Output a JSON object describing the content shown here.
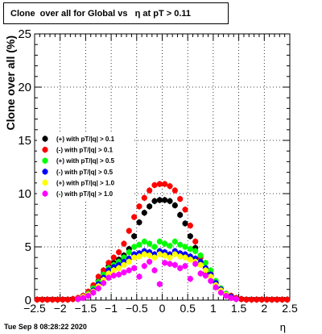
{
  "chart_data": {
    "type": "scatter",
    "title": "Clone  over all for Global vs   η at pT > 0.11",
    "xlabel": "η",
    "ylabel": "Clone  over all (%)",
    "xlim": [
      -2.5,
      2.5
    ],
    "ylim": [
      0,
      25
    ],
    "x_ticks": [
      "−2.5",
      "−2",
      "−1.5",
      "−1",
      "−0.5",
      "0",
      "0.5",
      "1",
      "1.5",
      "2",
      "2.5"
    ],
    "y_ticks": [
      "0",
      "5",
      "10",
      "15",
      "20",
      "25"
    ],
    "grid": true,
    "legend_position": "middle-left",
    "series": [
      {
        "name": "(+) with pT/|q| > 0.1",
        "color": "#000000",
        "x": [
          -2.45,
          -2.35,
          -2.25,
          -2.15,
          -2.05,
          -1.95,
          -1.85,
          -1.75,
          -1.65,
          -1.55,
          -1.45,
          -1.35,
          -1.25,
          -1.15,
          -1.05,
          -0.95,
          -0.85,
          -0.75,
          -0.65,
          -0.55,
          -0.45,
          -0.35,
          -0.25,
          -0.15,
          -0.05,
          0.05,
          0.15,
          0.25,
          0.35,
          0.45,
          0.55,
          0.65,
          0.75,
          0.85,
          0.95,
          1.05,
          1.15,
          1.25,
          1.35,
          1.45,
          1.55,
          1.65,
          1.75,
          1.85,
          1.95,
          2.05,
          2.15,
          2.25,
          2.35,
          2.45
        ],
        "y": [
          0.05,
          0.05,
          0.05,
          0.05,
          0.05,
          0.05,
          0.05,
          0.1,
          0.2,
          0.4,
          0.7,
          1.2,
          1.8,
          2.5,
          3.2,
          3.5,
          3.8,
          4.2,
          4.8,
          6.0,
          7.3,
          8.2,
          8.8,
          9.3,
          9.4,
          9.4,
          9.3,
          8.9,
          8.0,
          7.2,
          6.0,
          4.9,
          3.4,
          2.7,
          2.3,
          1.6,
          1.0,
          0.6,
          0.4,
          0.2,
          0.1,
          0.05,
          0.05,
          0.05,
          0.05,
          0.05,
          0.05,
          0.05,
          0.05,
          0.05
        ]
      },
      {
        "name": "(-) with pT/|q| > 0.1",
        "color": "#ff0000",
        "x": [
          -2.45,
          -2.35,
          -2.25,
          -2.15,
          -2.05,
          -1.95,
          -1.85,
          -1.75,
          -1.65,
          -1.55,
          -1.45,
          -1.35,
          -1.25,
          -1.15,
          -1.05,
          -0.95,
          -0.85,
          -0.75,
          -0.65,
          -0.55,
          -0.45,
          -0.35,
          -0.25,
          -0.15,
          -0.05,
          0.05,
          0.15,
          0.25,
          0.35,
          0.45,
          0.55,
          0.65,
          0.75,
          0.85,
          0.95,
          1.05,
          1.15,
          1.25,
          1.35,
          1.45,
          1.55,
          1.65,
          1.75,
          1.85,
          1.95,
          2.05,
          2.15,
          2.25,
          2.35,
          2.45
        ],
        "y": [
          0.05,
          0.05,
          0.05,
          0.05,
          0.05,
          0.05,
          0.05,
          0.1,
          0.2,
          0.4,
          0.8,
          1.4,
          2.2,
          2.8,
          3.5,
          4.0,
          4.5,
          5.3,
          6.5,
          7.8,
          8.8,
          9.6,
          10.3,
          10.8,
          10.9,
          10.9,
          10.7,
          10.3,
          9.5,
          8.5,
          7.0,
          5.5,
          4.0,
          3.0,
          2.5,
          1.7,
          1.1,
          0.6,
          0.4,
          0.2,
          0.1,
          0.05,
          0.05,
          0.05,
          0.05,
          0.05,
          0.05,
          0.05,
          0.05,
          0.05
        ]
      },
      {
        "name": "(+) with pT/|q| > 0.5",
        "color": "#00ff00",
        "x": [
          -1.65,
          -1.55,
          -1.45,
          -1.35,
          -1.25,
          -1.15,
          -1.05,
          -0.95,
          -0.85,
          -0.75,
          -0.65,
          -0.55,
          -0.45,
          -0.35,
          -0.25,
          -0.15,
          -0.05,
          0.05,
          0.15,
          0.25,
          0.35,
          0.45,
          0.55,
          0.65,
          0.75,
          0.85,
          0.95,
          1.05,
          1.15,
          1.25,
          1.35,
          1.45
        ],
        "y": [
          0.1,
          0.3,
          0.6,
          1.1,
          1.7,
          2.4,
          3.0,
          3.3,
          3.6,
          4.0,
          4.5,
          5.0,
          5.2,
          5.5,
          5.3,
          5.0,
          5.5,
          5.3,
          5.1,
          5.5,
          5.2,
          5.0,
          4.8,
          4.6,
          4.2,
          3.5,
          2.8,
          1.8,
          1.1,
          0.6,
          0.3,
          0.1
        ]
      },
      {
        "name": "(-) with pT/|q| > 0.5",
        "color": "#0000ff",
        "x": [
          -1.65,
          -1.55,
          -1.45,
          -1.35,
          -1.25,
          -1.15,
          -1.05,
          -0.95,
          -0.85,
          -0.75,
          -0.65,
          -0.55,
          -0.45,
          -0.35,
          -0.25,
          -0.15,
          -0.05,
          0.05,
          0.15,
          0.25,
          0.35,
          0.45,
          0.55,
          0.65,
          0.75,
          0.85,
          0.95,
          1.05,
          1.15,
          1.25,
          1.35,
          1.45
        ],
        "y": [
          0.1,
          0.3,
          0.5,
          0.9,
          1.5,
          2.1,
          2.8,
          3.1,
          3.3,
          3.6,
          3.9,
          4.3,
          4.4,
          4.6,
          4.5,
          4.3,
          4.6,
          4.5,
          4.3,
          4.6,
          4.4,
          4.3,
          4.1,
          3.9,
          3.6,
          3.0,
          2.4,
          1.6,
          1.0,
          0.5,
          0.3,
          0.1
        ]
      },
      {
        "name": "(+) with pT/|q| > 1.0",
        "color": "#ffff00",
        "x": [
          -1.65,
          -1.55,
          -1.45,
          -1.35,
          -1.25,
          -1.15,
          -1.05,
          -0.95,
          -0.85,
          -0.75,
          -0.65,
          -0.55,
          -0.45,
          -0.35,
          -0.25,
          -0.15,
          -0.05,
          0.05,
          0.15,
          0.25,
          0.35,
          0.45,
          0.55,
          0.65,
          0.75,
          0.85,
          0.95,
          1.05,
          1.15,
          1.25,
          1.35,
          1.45
        ],
        "y": [
          0.1,
          0.3,
          0.5,
          0.8,
          1.3,
          1.9,
          2.5,
          2.8,
          3.0,
          3.3,
          3.6,
          4.0,
          4.1,
          4.3,
          4.2,
          4.0,
          4.3,
          4.2,
          4.0,
          4.3,
          4.1,
          4.0,
          3.8,
          3.6,
          3.3,
          2.8,
          2.2,
          1.4,
          0.9,
          0.5,
          0.2,
          0.1
        ]
      },
      {
        "name": "(-) with pT/|q| > 1.0",
        "color": "#ff00ff",
        "x": [
          -1.65,
          -1.55,
          -1.45,
          -1.35,
          -1.25,
          -1.15,
          -1.05,
          -0.95,
          -0.85,
          -0.75,
          -0.65,
          -0.55,
          -0.45,
          -0.35,
          -0.25,
          -0.15,
          -0.05,
          0.05,
          0.15,
          0.25,
          0.35,
          0.45,
          0.55,
          0.65,
          0.75,
          0.85,
          0.95,
          1.05,
          1.15,
          1.25,
          1.35,
          1.45
        ],
        "y": [
          0.1,
          0.2,
          0.4,
          0.7,
          1.1,
          1.6,
          2.1,
          2.3,
          2.4,
          2.6,
          2.8,
          3.0,
          2.2,
          3.2,
          3.6,
          2.8,
          1.5,
          3.5,
          3.4,
          3.3,
          3.0,
          3.2,
          2.0,
          3.4,
          2.5,
          2.3,
          1.8,
          1.2,
          0.7,
          0.4,
          0.2,
          0.1
        ]
      }
    ]
  },
  "footer": {
    "timestamp": "Tue Sep  8 08:28:22 2020"
  }
}
